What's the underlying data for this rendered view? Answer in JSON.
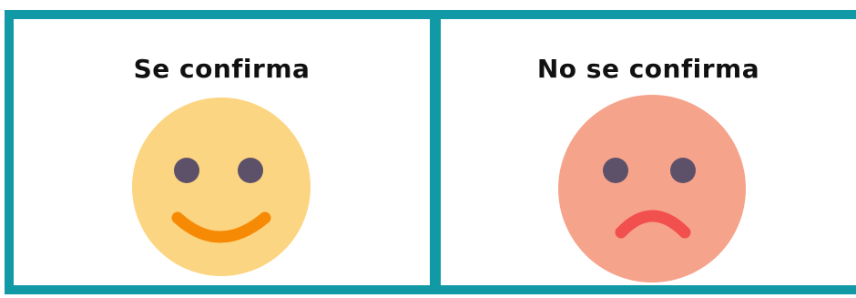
{
  "panels": [
    {
      "title": "Se confirma",
      "icon": "smiling-face-icon",
      "face_color": "#fcd582",
      "feature_color": "#f78a05"
    },
    {
      "title": "No se confirma",
      "icon": "frowning-face-icon",
      "face_color": "#f6a38b",
      "feature_color": "#f24f4f"
    }
  ],
  "colors": {
    "border": "#1199a6",
    "eyes": "#5d5169",
    "background": "#ffffff"
  }
}
